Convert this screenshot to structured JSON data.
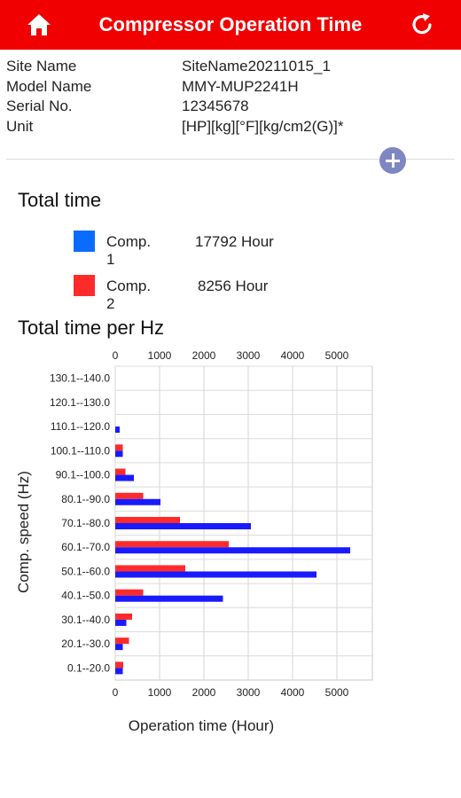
{
  "header": {
    "title": "Compressor Operation Time",
    "home_icon": "home-icon",
    "refresh_icon": "refresh-icon",
    "color": "#f00000"
  },
  "info": [
    {
      "label": "Site Name",
      "value": "SiteName20211015_1"
    },
    {
      "label": "Model Name",
      "value": "MMY-MUP2241H"
    },
    {
      "label": "Serial No.",
      "value": "12345678"
    },
    {
      "label": "Unit",
      "value": "[HP][kg][°F][kg/cm2(G)]*"
    }
  ],
  "expand_icon": "plus-circle-icon",
  "total_time": {
    "title": "Total time",
    "items": [
      {
        "name": "Comp. 1",
        "value": "17792 Hour",
        "color": "#0a6cff"
      },
      {
        "name": "Comp. 2",
        "value": "8256 Hour",
        "color": "#ff2a2a"
      }
    ]
  },
  "per_hz_title": "Total time per Hz",
  "chart_data": {
    "type": "bar",
    "orientation": "horizontal",
    "xlabel": "Operation time (Hour)",
    "ylabel": "Comp. speed (Hz)",
    "xlim": [
      0,
      5800
    ],
    "xticks": [
      0,
      1000,
      2000,
      3000,
      4000,
      5000
    ],
    "categories": [
      "130.1--140.0",
      "120.1--130.0",
      "110.1--120.0",
      "100.1--110.0",
      "90.1--100.0",
      "80.1--90.0",
      "70.1--80.0",
      "60.1--70.0",
      "50.1--60.0",
      "40.1--50.0",
      "30.1--40.0",
      "20.1--30.0",
      "0.1--20.0"
    ],
    "series": [
      {
        "color": "#ff2a2a",
        "values": [
          0,
          0,
          0,
          170,
          230,
          630,
          1460,
          2560,
          1580,
          630,
          380,
          310,
          180
        ]
      },
      {
        "color": "#1a1aff",
        "values": [
          0,
          0,
          100,
          170,
          420,
          1020,
          3060,
          5300,
          4540,
          2430,
          250,
          170,
          170
        ]
      }
    ],
    "grid": true
  }
}
